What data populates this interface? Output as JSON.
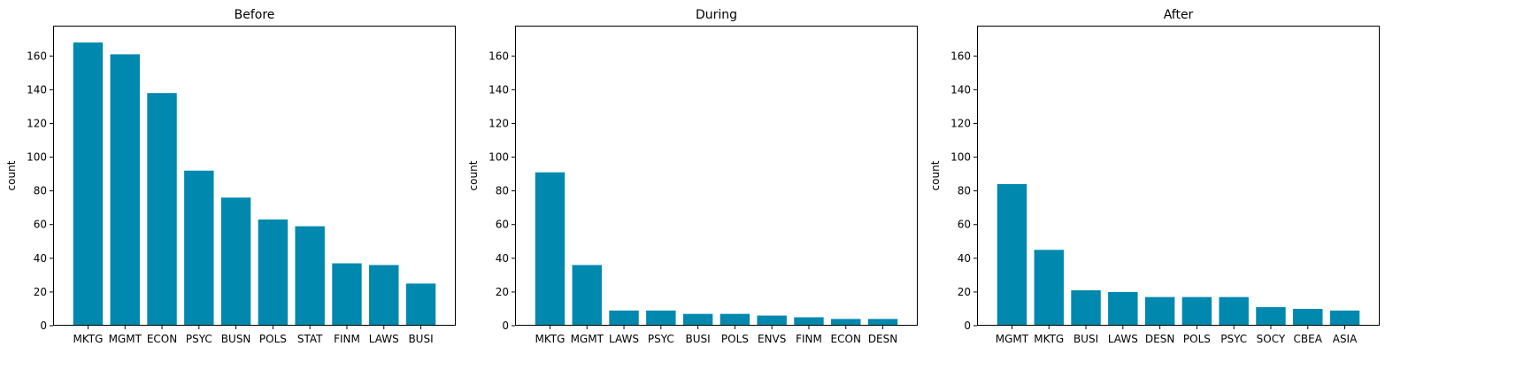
{
  "colors": {
    "bar": "#0088AF",
    "axis": "#000000",
    "background": "#FFFFFF"
  },
  "chart_data": [
    {
      "type": "bar",
      "title": "Before",
      "ylabel": "count",
      "xlabel": "",
      "ylim": [
        0,
        178
      ],
      "yticks": [
        0,
        20,
        40,
        60,
        80,
        100,
        120,
        140,
        160
      ],
      "grid": false,
      "categories": [
        "MKTG",
        "MGMT",
        "ECON",
        "PSYC",
        "BUSN",
        "POLS",
        "STAT",
        "FINM",
        "LAWS",
        "BUSI"
      ],
      "values": [
        168,
        161,
        138,
        92,
        76,
        63,
        59,
        37,
        36,
        25
      ]
    },
    {
      "type": "bar",
      "title": "During",
      "ylabel": "count",
      "xlabel": "",
      "ylim": [
        0,
        178
      ],
      "yticks": [
        0,
        20,
        40,
        60,
        80,
        100,
        120,
        140,
        160
      ],
      "grid": false,
      "categories": [
        "MKTG",
        "MGMT",
        "LAWS",
        "PSYC",
        "BUSI",
        "POLS",
        "ENVS",
        "FINM",
        "ECON",
        "DESN"
      ],
      "values": [
        91,
        36,
        9,
        9,
        7,
        7,
        6,
        5,
        4,
        4
      ]
    },
    {
      "type": "bar",
      "title": "After",
      "ylabel": "count",
      "xlabel": "",
      "ylim": [
        0,
        178
      ],
      "yticks": [
        0,
        20,
        40,
        60,
        80,
        100,
        120,
        140,
        160
      ],
      "grid": false,
      "categories": [
        "MGMT",
        "MKTG",
        "BUSI",
        "LAWS",
        "DESN",
        "POLS",
        "PSYC",
        "SOCY",
        "CBEA",
        "ASIA"
      ],
      "values": [
        84,
        45,
        21,
        20,
        17,
        17,
        17,
        11,
        10,
        9
      ]
    }
  ]
}
